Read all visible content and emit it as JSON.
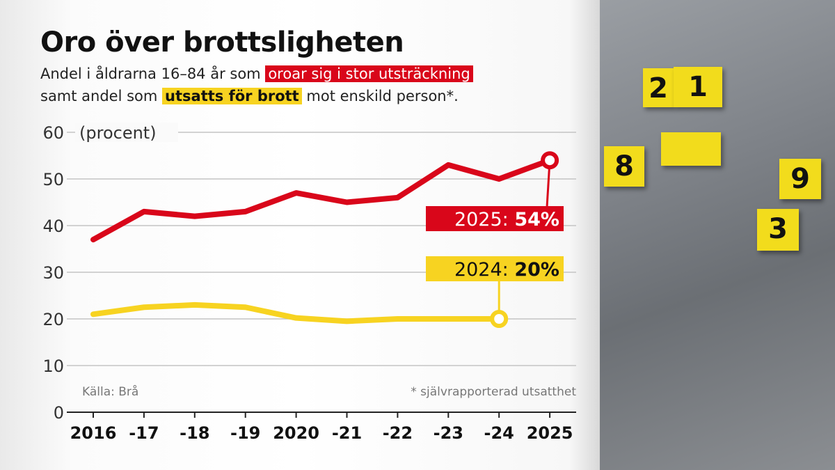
{
  "title": "Oro över brottsligheten",
  "subtitle": {
    "line1_pre": "Andel i åldrarna 16–84 år som ",
    "line1_highlight": "oroar sig i stor utsträckning",
    "line2_pre": "samt andel som ",
    "line2_highlight": "utsatts för brott",
    "line2_post": " mot enskild person*."
  },
  "source": "Källa: Brå",
  "footnote": "* självrapporterad utsatthet",
  "photo_markers": [
    "2",
    "1",
    "8",
    "9",
    "3"
  ],
  "chart_data": {
    "type": "line",
    "ylabel": "(procent)",
    "ylim": [
      0,
      60
    ],
    "yticks": [
      0,
      10,
      20,
      30,
      40,
      50,
      60
    ],
    "grid": true,
    "x": [
      "2016",
      "-17",
      "-18",
      "-19",
      "2020",
      "-21",
      "-22",
      "-23",
      "-24",
      "2025"
    ],
    "series": [
      {
        "color": "#d9061a",
        "values": [
          37,
          43,
          42,
          43,
          47,
          45,
          46,
          53,
          50,
          54
        ],
        "label": {
          "year": "2025: ",
          "value": "54%"
        }
      },
      {
        "color": "#f7d321",
        "values": [
          21,
          22.5,
          23,
          22.5,
          20.2,
          19.5,
          20,
          20,
          20,
          null
        ],
        "label": {
          "year": "2024: ",
          "value": "20%"
        }
      }
    ]
  }
}
